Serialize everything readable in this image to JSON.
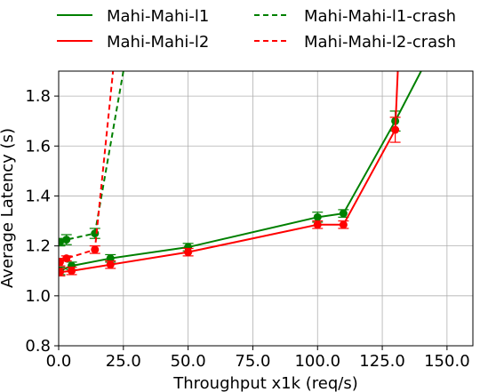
{
  "chart_data": {
    "type": "line",
    "title": "",
    "xlabel": "Throughput x1k (req/s)",
    "ylabel": "Average Latency (s)",
    "xlim": [
      0,
      160
    ],
    "ylim": [
      0.8,
      1.9
    ],
    "xticks": [
      0,
      25,
      50,
      75,
      100,
      125,
      150
    ],
    "xtick_labels": [
      "0.0",
      "25.0",
      "50.0",
      "75.0",
      "100.0",
      "125.0",
      "150.0"
    ],
    "yticks": [
      0.8,
      1.0,
      1.2,
      1.4,
      1.6,
      1.8
    ],
    "ytick_labels": [
      "0.8",
      "1.0",
      "1.2",
      "1.4",
      "1.6",
      "1.8"
    ],
    "grid": true,
    "legend_position": "top, outside plot",
    "series": [
      {
        "name": "Mahi-Mahi-l1",
        "color": "#008000",
        "style": "solid",
        "x": [
          0.5,
          5,
          20,
          50,
          100,
          110,
          130,
          140
        ],
        "y": [
          1.1,
          1.12,
          1.15,
          1.195,
          1.315,
          1.33,
          1.7,
          1.9
        ],
        "err": [
          0.015,
          0.015,
          0.015,
          0.015,
          0.02,
          0.015,
          0.04,
          null
        ],
        "markers": [
          true,
          true,
          true,
          true,
          true,
          true,
          true,
          false
        ]
      },
      {
        "name": "Mahi-Mahi-l2",
        "color": "#ff0000",
        "style": "solid",
        "x": [
          0.5,
          5,
          20,
          50,
          100,
          110,
          130,
          131
        ],
        "y": [
          1.095,
          1.1,
          1.125,
          1.175,
          1.285,
          1.285,
          1.665,
          1.9
        ],
        "err": [
          0.015,
          0.015,
          0.015,
          0.015,
          0.015,
          0.015,
          0.05,
          null
        ],
        "markers": [
          true,
          true,
          true,
          true,
          true,
          true,
          true,
          false
        ]
      },
      {
        "name": "Mahi-Mahi-l1-crash",
        "color": "#008000",
        "style": "dashed",
        "x": [
          0.5,
          3,
          14,
          25
        ],
        "y": [
          1.215,
          1.225,
          1.25,
          1.9
        ],
        "err": [
          0.015,
          0.02,
          0.02,
          null
        ],
        "markers": [
          true,
          true,
          true,
          false
        ]
      },
      {
        "name": "Mahi-Mahi-l2-crash",
        "color": "#ff0000",
        "style": "dashed",
        "x": [
          0.5,
          3,
          14,
          21
        ],
        "y": [
          1.135,
          1.15,
          1.185,
          1.9
        ],
        "err": [
          0.015,
          0.01,
          0.015,
          null
        ],
        "markers": [
          true,
          true,
          true,
          false
        ]
      }
    ]
  }
}
